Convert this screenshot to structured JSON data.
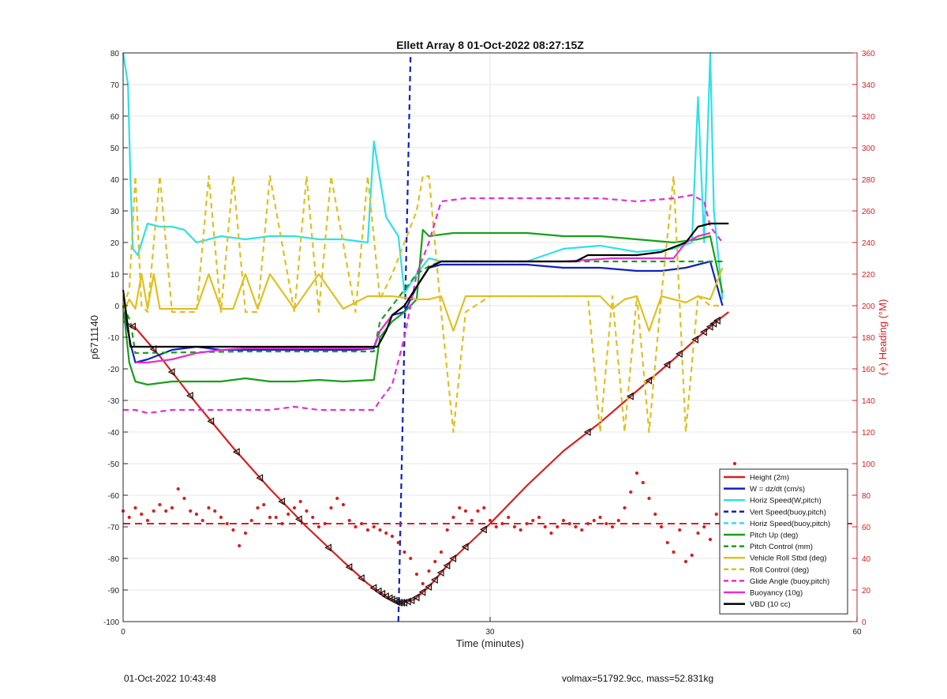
{
  "chart_data": {
    "type": "line",
    "title": "Ellett Array 8 01-Oct-2022 08:27:15Z",
    "xlabel": "Time (minutes)",
    "ylabel": "p6711140",
    "y2label": "(+) Heading (°M)",
    "xlim": [
      0,
      60
    ],
    "ylim": [
      -100,
      80
    ],
    "y2lim": [
      0,
      360
    ],
    "xticks": [
      0,
      30,
      60
    ],
    "yticks": [
      -100,
      -90,
      -80,
      -70,
      -60,
      -50,
      -40,
      -30,
      -20,
      -10,
      0,
      10,
      20,
      30,
      40,
      50,
      60,
      70,
      80
    ],
    "y2ticks": [
      0,
      20,
      40,
      60,
      80,
      100,
      120,
      140,
      160,
      180,
      200,
      220,
      240,
      260,
      280,
      300,
      320,
      340,
      360
    ],
    "grid": true,
    "legend_position": "bottom-right",
    "colors": {
      "red": "#d62020",
      "blue": "#1020c0",
      "cyan": "#30e0e8",
      "green": "#18a018",
      "yellow": "#e0c020",
      "magenta": "#e030d8",
      "black": "#000000",
      "axis_right": "#d62020"
    },
    "series": [
      {
        "name": "Height (2m)",
        "style": "solid",
        "color": "red",
        "x": [
          0,
          1,
          3,
          6,
          9,
          12,
          15,
          18,
          20,
          21.5,
          22.5,
          23,
          23.8,
          25,
          27,
          30,
          33,
          36,
          39,
          42,
          45,
          47,
          48.5,
          49.5
        ],
        "y": [
          -5,
          -7,
          -16,
          -31,
          -45,
          -58,
          -70,
          -81,
          -88,
          -92,
          -94,
          -94,
          -93,
          -89,
          -80,
          -69,
          -57,
          -46,
          -37,
          -27,
          -17,
          -10,
          -5,
          -2
        ]
      },
      {
        "name": "W = dz/dt (cm/s)",
        "style": "solid",
        "color": "blue",
        "x": [
          0,
          0.6,
          1,
          2,
          4,
          6,
          8,
          10,
          13,
          16,
          19,
          20.5,
          21,
          22,
          23,
          24,
          25,
          26,
          28,
          30,
          33,
          36,
          39,
          42,
          44,
          46,
          47,
          48,
          49
        ],
        "y": [
          0,
          -12,
          -18,
          -17,
          -14,
          -13,
          -14,
          -14,
          -14,
          -14,
          -14,
          -13.5,
          -8,
          -3,
          -2,
          6,
          12,
          13,
          13,
          13,
          13,
          12,
          12,
          11,
          11,
          12,
          13,
          14,
          0
        ]
      },
      {
        "name": "Horiz Speed(W,pitch)",
        "style": "solid",
        "color": "cyan",
        "x": [
          0,
          0.4,
          0.6,
          0.8,
          1.2,
          2,
          3,
          4,
          5,
          6,
          8,
          10,
          12,
          14,
          16,
          18,
          20,
          20.5,
          21,
          21.5,
          22,
          22.5,
          23,
          24,
          25,
          26,
          28,
          30,
          33,
          36,
          39,
          42,
          45,
          46.5,
          47,
          47.5,
          48,
          48.3,
          49
        ],
        "y": [
          80,
          70,
          40,
          18,
          16,
          26,
          25,
          25,
          24,
          20,
          22,
          21,
          22,
          22,
          21,
          21,
          20,
          52,
          40,
          28,
          25,
          22,
          4,
          10,
          15,
          14,
          14,
          14,
          14,
          18,
          19,
          17,
          18,
          20,
          66,
          20,
          80,
          30,
          2
        ]
      },
      {
        "name": "Vert Speed(buoy,pitch)",
        "style": "dashed",
        "color": "blue",
        "x": [
          22.5,
          23.0,
          23.5
        ],
        "y": [
          -100,
          -10,
          80
        ]
      },
      {
        "name": "Horiz Speed(buoy,pitch)",
        "style": "dashed",
        "color": "cyan",
        "x": [],
        "y": []
      },
      {
        "name": "Pitch Up (deg)",
        "style": "solid",
        "color": "green",
        "x": [
          0,
          0.5,
          1,
          2,
          4,
          6,
          8,
          10,
          12,
          14,
          16,
          18,
          20.5,
          21,
          22,
          23,
          24,
          24.5,
          25,
          27,
          30,
          33,
          36,
          39,
          42,
          45,
          47,
          48,
          49
        ],
        "y": [
          0,
          -18,
          -24,
          -25,
          -24,
          -24,
          -24,
          -23,
          -24,
          -24,
          -23.5,
          -24,
          -23.5,
          -10,
          -5,
          -2,
          2,
          24,
          22,
          23,
          23,
          23,
          22,
          22,
          21,
          20,
          21,
          22,
          4
        ]
      },
      {
        "name": "Pitch Control (mm)",
        "style": "dashed",
        "color": "green",
        "x": [
          0,
          0.6,
          1,
          10,
          20.5,
          21,
          22,
          23,
          24,
          25,
          26,
          30,
          40,
          49
        ],
        "y": [
          0,
          -5,
          -15,
          -14.5,
          -14.5,
          -5,
          0,
          5,
          10,
          12.5,
          14,
          14,
          14,
          14
        ]
      },
      {
        "name": "Vehicle Roll Stbd (deg)",
        "style": "solid",
        "color": "yellow",
        "x": [
          0,
          0.5,
          1,
          1.5,
          2,
          2.5,
          3,
          4,
          6,
          7,
          8,
          9,
          10,
          11,
          12,
          14,
          16,
          18,
          20,
          22,
          24,
          25,
          26,
          27,
          28,
          30,
          33,
          36,
          39,
          40,
          41,
          42,
          43,
          44,
          45,
          46,
          47,
          48,
          49
        ],
        "y": [
          -2,
          2,
          -1,
          10,
          -1,
          10,
          -1,
          -1,
          -1,
          10,
          -1,
          -1,
          10,
          -1,
          10,
          -1,
          10,
          -1,
          3,
          3,
          2,
          2,
          3,
          -8,
          3,
          3,
          3,
          3,
          3,
          -1,
          2,
          3,
          -8,
          3,
          2,
          1,
          3,
          2,
          12
        ]
      },
      {
        "name": "Roll Control (deg)",
        "style": "dashed",
        "color": "yellow",
        "x": [
          0,
          0.5,
          1,
          1.5,
          2,
          3,
          4,
          6,
          7,
          8,
          9,
          10,
          11,
          12,
          14,
          15,
          16,
          17,
          19,
          20,
          21,
          22,
          23,
          24,
          24.5,
          25,
          26,
          27,
          28,
          30,
          33,
          36,
          38,
          39,
          40,
          41,
          42,
          43,
          44,
          45,
          46,
          47,
          48,
          49
        ],
        "y": [
          0,
          5,
          41,
          0,
          -2,
          41,
          -2,
          -2,
          41,
          -2,
          41,
          -2,
          -2,
          41,
          -2,
          41,
          -2,
          41,
          -2,
          41,
          2,
          10,
          20,
          30,
          41,
          41,
          -2,
          -40,
          -2,
          3,
          3,
          3,
          3,
          -40,
          3,
          -40,
          3,
          -40,
          3,
          41,
          -40,
          3,
          0,
          0
        ]
      },
      {
        "name": "Glide Angle (buoy,pitch)",
        "style": "dashed",
        "color": "magenta",
        "x": [
          0,
          1,
          2,
          4,
          6,
          8,
          10,
          12,
          14,
          16,
          18,
          20,
          20.5,
          21,
          22,
          23,
          24,
          25,
          26,
          28,
          30,
          33,
          36,
          39,
          42,
          45,
          46.5,
          47,
          47.5,
          48,
          49
        ],
        "y": [
          -33,
          -33,
          -34,
          -33,
          -33,
          -33,
          -33,
          -33,
          -32,
          -33,
          -33,
          -33,
          -33,
          -30,
          -25,
          -10,
          10,
          20,
          33,
          34,
          34,
          34,
          34,
          34,
          33,
          34,
          35,
          34,
          33,
          25,
          20
        ]
      },
      {
        "name": "Buoyancy (10g)",
        "style": "solid",
        "color": "magenta",
        "x": [
          1,
          2,
          4,
          6,
          8,
          10,
          12,
          14,
          16,
          18,
          20,
          20.5,
          21,
          22,
          23,
          24,
          25,
          26,
          30,
          36,
          40,
          45,
          46,
          47,
          48
        ],
        "y": [
          -18,
          -18,
          -17,
          -15,
          -14,
          -13.5,
          -13.5,
          -13.5,
          -13.5,
          -13.5,
          -13.5,
          -13,
          -8,
          -3,
          0,
          6,
          12,
          14,
          14,
          14,
          15,
          15,
          20,
          22,
          23
        ]
      },
      {
        "name": "VBD (10 cc)",
        "style": "solid",
        "color": "black",
        "x": [
          0,
          0.6,
          1,
          5,
          10,
          15,
          20,
          20.8,
          21.5,
          22,
          23,
          24,
          25,
          26,
          30,
          33,
          37,
          38,
          40,
          42,
          44,
          46,
          47,
          48,
          49.5
        ],
        "y": [
          5,
          -13,
          -13,
          -13,
          -13,
          -13,
          -13,
          -13,
          -8,
          -3,
          0,
          6,
          12,
          14,
          14,
          14,
          14,
          16,
          16,
          16,
          17,
          20,
          25,
          26,
          26
        ]
      }
    ],
    "heading_series": {
      "name": "Heading",
      "axis": "right",
      "color": "red",
      "points": [
        [
          0,
          70
        ],
        [
          0.5,
          66
        ],
        [
          1,
          72
        ],
        [
          1.5,
          68
        ],
        [
          2,
          64
        ],
        [
          2.5,
          70
        ],
        [
          3,
          74
        ],
        [
          3.5,
          70
        ],
        [
          4,
          72
        ],
        [
          4.5,
          84
        ],
        [
          5,
          78
        ],
        [
          5.5,
          70
        ],
        [
          6,
          68
        ],
        [
          6.5,
          64
        ],
        [
          7,
          72
        ],
        [
          7.5,
          70
        ],
        [
          8,
          66
        ],
        [
          8.5,
          62
        ],
        [
          9,
          58
        ],
        [
          9.5,
          48
        ],
        [
          10,
          56
        ],
        [
          10.5,
          64
        ],
        [
          11,
          72
        ],
        [
          11.5,
          74
        ],
        [
          12,
          66
        ],
        [
          12.5,
          66
        ],
        [
          13,
          62
        ],
        [
          13.5,
          68
        ],
        [
          14,
          72
        ],
        [
          14.5,
          76
        ],
        [
          15,
          70
        ],
        [
          15.5,
          66
        ],
        [
          16,
          60
        ],
        [
          16.5,
          62
        ],
        [
          17,
          72
        ],
        [
          17.5,
          78
        ],
        [
          18,
          74
        ],
        [
          18.5,
          64
        ],
        [
          19,
          60
        ],
        [
          19.5,
          62
        ],
        [
          20,
          58
        ],
        [
          20.5,
          60
        ],
        [
          21,
          58
        ],
        [
          21.5,
          56
        ],
        [
          22,
          54
        ],
        [
          22.5,
          50
        ],
        [
          23,
          44
        ],
        [
          23.5,
          40
        ],
        [
          24,
          30
        ],
        [
          24.5,
          24
        ],
        [
          25,
          32
        ],
        [
          25.5,
          38
        ],
        [
          26,
          44
        ],
        [
          26.5,
          58
        ],
        [
          27,
          66
        ],
        [
          27.5,
          72
        ],
        [
          28,
          70
        ],
        [
          28.5,
          64
        ],
        [
          29,
          70
        ],
        [
          29.5,
          72
        ],
        [
          30,
          64
        ],
        [
          30.5,
          60
        ],
        [
          31,
          62
        ],
        [
          31.5,
          66
        ],
        [
          32,
          60
        ],
        [
          32.5,
          58
        ],
        [
          33,
          62
        ],
        [
          33.5,
          64
        ],
        [
          34,
          66
        ],
        [
          34.5,
          60
        ],
        [
          35,
          56
        ],
        [
          35.5,
          60
        ],
        [
          36,
          64
        ],
        [
          36.5,
          62
        ],
        [
          37,
          60
        ],
        [
          37.5,
          58
        ],
        [
          38,
          62
        ],
        [
          38.5,
          64
        ],
        [
          39,
          66
        ],
        [
          39.5,
          62
        ],
        [
          40,
          60
        ],
        [
          40.5,
          64
        ],
        [
          41,
          72
        ],
        [
          41.5,
          82
        ],
        [
          42,
          94
        ],
        [
          42.5,
          88
        ],
        [
          43,
          78
        ],
        [
          43.5,
          68
        ],
        [
          44,
          60
        ],
        [
          44.5,
          50
        ],
        [
          45,
          44
        ],
        [
          45.5,
          58
        ],
        [
          46,
          38
        ],
        [
          46.5,
          42
        ],
        [
          47,
          56
        ],
        [
          47.5,
          60
        ],
        [
          48,
          52
        ],
        [
          48.5,
          68
        ],
        [
          49,
          72
        ],
        [
          49.5,
          90
        ],
        [
          50,
          100
        ]
      ]
    },
    "heading_reference": {
      "y2": 62,
      "style": "dashed",
      "color": "red"
    },
    "markers": {
      "symbol": "triangle",
      "series": "Height (2m)",
      "x": [
        0.8,
        2.5,
        4,
        5.5,
        7.2,
        9.3,
        11.2,
        13,
        14.4,
        16.8,
        18.5,
        19.5,
        20.5,
        20.9,
        21.2,
        21.5,
        21.8,
        22,
        22.2,
        22.4,
        22.6,
        22.8,
        23,
        23.3,
        23.6,
        24,
        24.5,
        25,
        25.5,
        26,
        26.5,
        27,
        28,
        29.5,
        38,
        41.5,
        43,
        44.5,
        45.5,
        46.8,
        47.5,
        48,
        48.3,
        48.6
      ]
    },
    "footer": {
      "left": "01-Oct-2022 10:43:48",
      "right": "volmax=51792.9cc, mass=52.831kg"
    }
  }
}
